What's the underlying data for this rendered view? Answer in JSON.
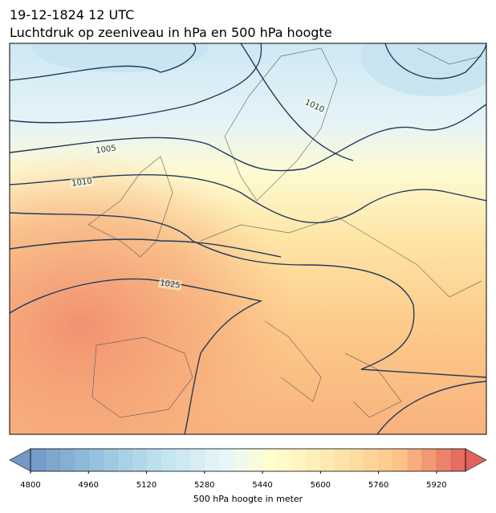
{
  "header": {
    "title": "19-12-1824 12 UTC",
    "subtitle": "Luchtdruk op zeeniveau in hPa en 500 hPa hoogte"
  },
  "isobars": [
    {
      "label": 1010
    },
    {
      "label": 1005
    },
    {
      "label": 1010
    },
    {
      "label": 1025
    }
  ],
  "colorbar": {
    "label": "500 hPa hoogte in meter",
    "range": [
      4800,
      6000
    ],
    "ticks": [
      4800,
      4960,
      5120,
      5280,
      5440,
      5600,
      5760,
      5920
    ]
  }
}
